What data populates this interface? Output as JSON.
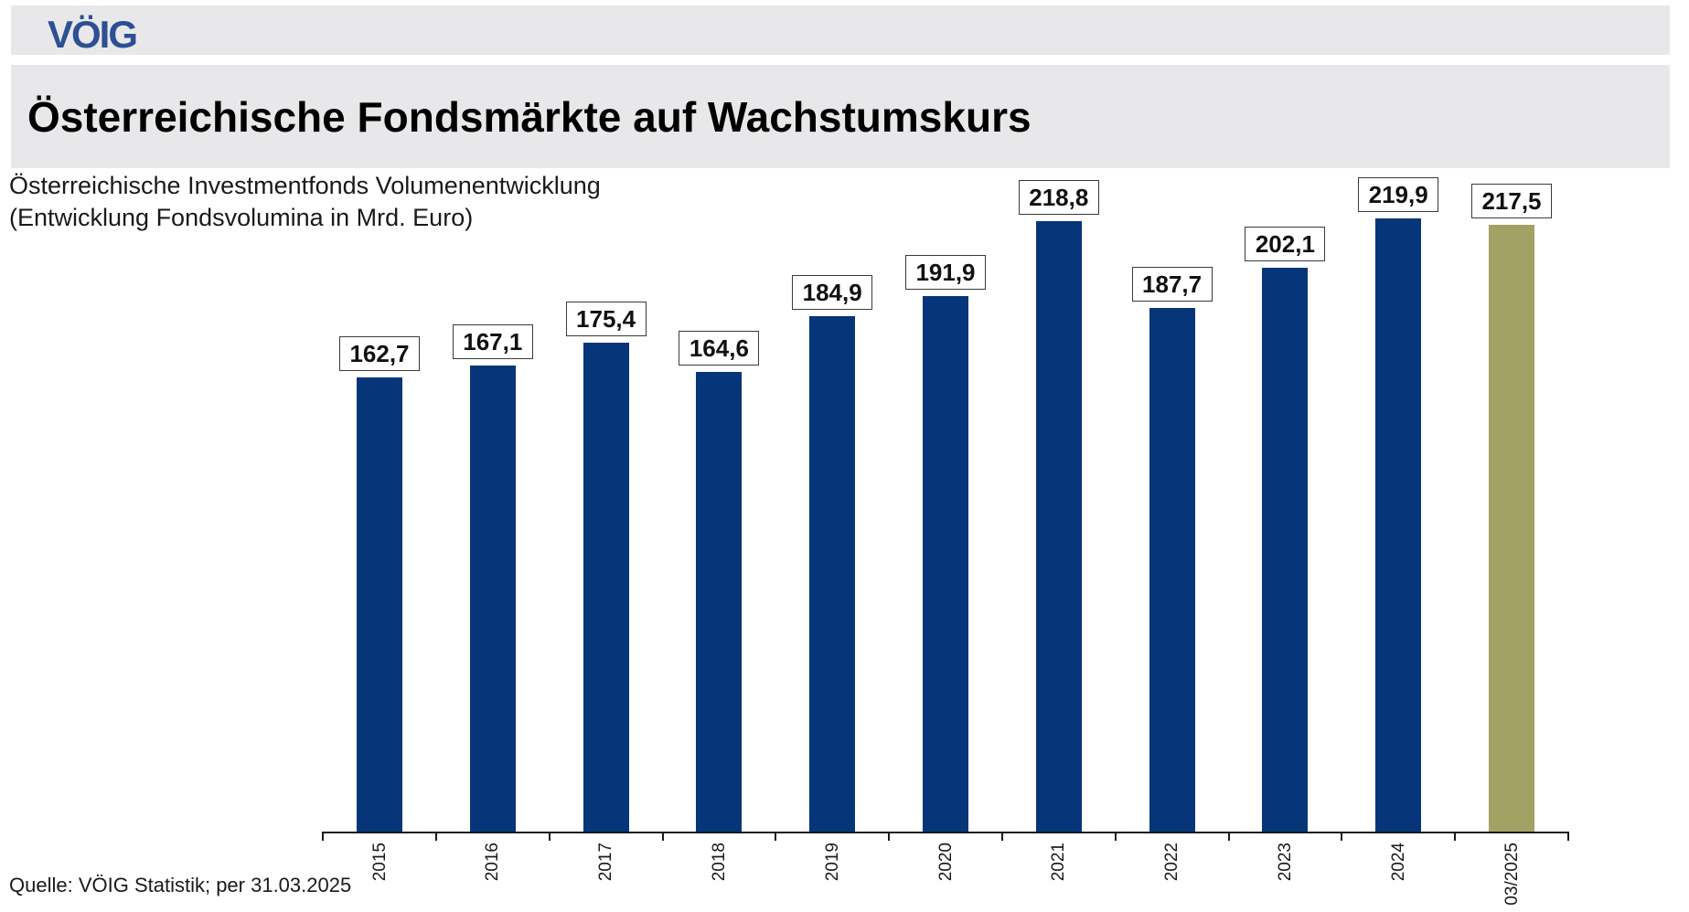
{
  "logo": {
    "text": "VÖIG"
  },
  "header": {
    "title": "Österreichische Fondsmärkte auf Wachstumskurs"
  },
  "chart": {
    "subtitle_line1": "Österreichische Investmentfonds Volumenentwicklung",
    "subtitle_line2": "(Entwicklung Fondsvolumina in Mrd. Euro)"
  },
  "footer": {
    "source": "Quelle: VÖIG Statistik; per 31.03.2025"
  },
  "colors": {
    "bar_default": "#063679",
    "bar_highlight": "#a1a264",
    "band_gray": "#e8e8ea",
    "logo_blue": "#2d4f93"
  },
  "chart_data": {
    "type": "bar",
    "title": "Österreichische Investmentfonds Volumenentwicklung",
    "subtitle": "(Entwicklung Fondsvolumina in Mrd. Euro)",
    "unit": "Mrd. Euro",
    "categories": [
      "2015",
      "2016",
      "2017",
      "2018",
      "2019",
      "2020",
      "2021",
      "2022",
      "2023",
      "2024",
      "03/2025"
    ],
    "values": [
      162.7,
      167.1,
      175.4,
      164.6,
      184.9,
      191.9,
      218.8,
      187.7,
      202.1,
      219.9,
      217.5
    ],
    "value_labels": [
      "162,7",
      "167,1",
      "175,4",
      "164,6",
      "184,9",
      "191,9",
      "218,8",
      "187,7",
      "202,1",
      "219,9",
      "217,5"
    ],
    "highlight_last_bar": true,
    "ylim": [
      0,
      235
    ],
    "grid": false,
    "legend": "none",
    "value_labels_boxed": true,
    "x_labels_rotated_degrees": -90
  }
}
